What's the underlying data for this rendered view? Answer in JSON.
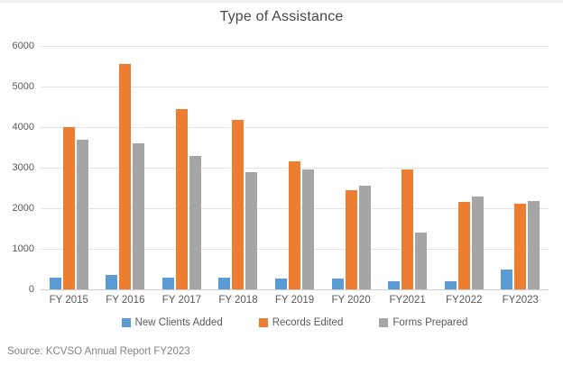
{
  "title": "Type of Assistance",
  "source_note": "Source:  KCVSO Annual Report FY2023",
  "colors": {
    "series_blue": "#5B9BD5",
    "series_orange": "#ED7D31",
    "series_gray": "#A5A5A5",
    "axis_text": "#595959",
    "gridline": "#e4e4e4"
  },
  "chart_data": {
    "type": "bar",
    "title": "Type of Assistance",
    "categories": [
      "FY 2015",
      "FY 2016",
      "FY 2017",
      "FY 2018",
      "FY 2019",
      "FY 2020",
      "FY2021",
      "FY2022",
      "FY2023"
    ],
    "series": [
      {
        "name": "New Clients Added",
        "color": "#5B9BD5",
        "values": [
          300,
          350,
          300,
          280,
          270,
          270,
          210,
          210,
          480
        ]
      },
      {
        "name": "Records Edited",
        "color": "#ED7D31",
        "values": [
          4000,
          5560,
          4440,
          4180,
          3150,
          2450,
          2950,
          2160,
          2120
        ]
      },
      {
        "name": "Forms Prepared",
        "color": "#A5A5A5",
        "values": [
          3700,
          3600,
          3300,
          2900,
          2950,
          2550,
          1400,
          2290,
          2180
        ]
      }
    ],
    "xlabel": "",
    "ylabel": "",
    "ylim": [
      0,
      6000
    ],
    "yticks": [
      0,
      1000,
      2000,
      3000,
      4000,
      5000,
      6000
    ],
    "grid": true,
    "legend_position": "bottom"
  }
}
